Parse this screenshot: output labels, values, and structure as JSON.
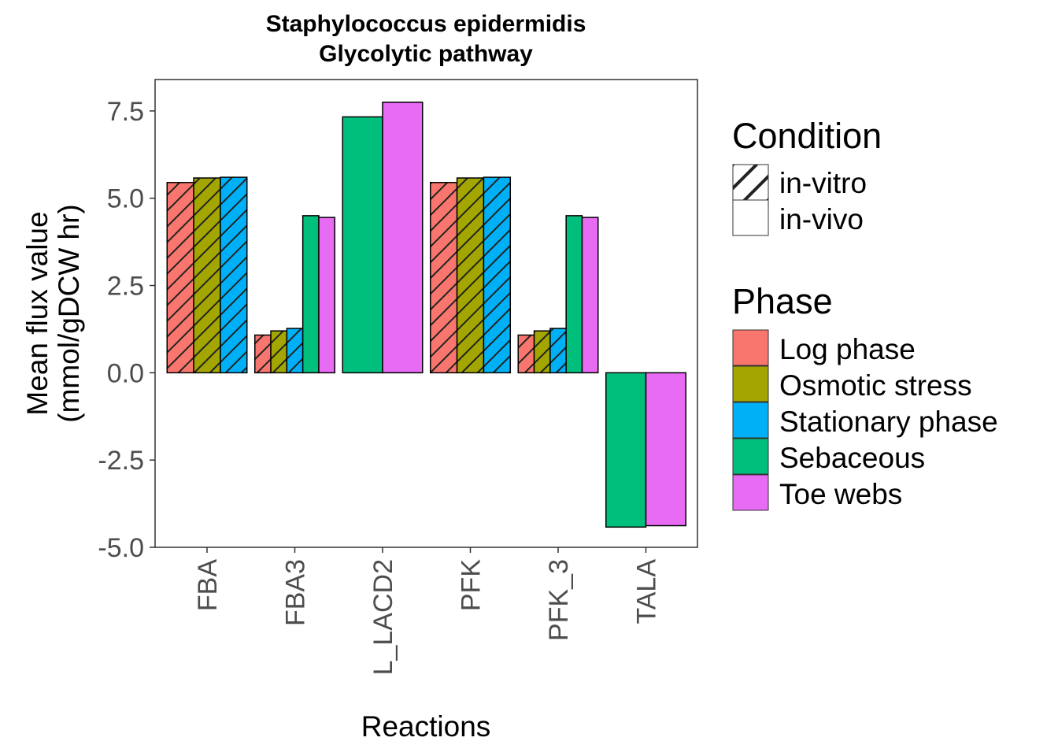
{
  "chart_data": {
    "type": "bar",
    "title": "Staphylococcus epidermidis",
    "subtitle": "Glycolytic pathway",
    "xlabel": "Reactions",
    "ylabel": [
      "Mean flux value",
      "(mmol/gDCW hr)"
    ],
    "categories": [
      "FBA",
      "FBA3",
      "L_LACD2",
      "PFK",
      "PFK_3",
      "TALA"
    ],
    "ylim": [
      -5.0,
      8.4
    ],
    "yticks": [
      "-5.0",
      "-2.5",
      "0.0",
      "2.5",
      "5.0",
      "7.5"
    ],
    "grid": false,
    "legend_position": "right",
    "series": [
      {
        "name": "Log phase",
        "condition": "in-vitro",
        "color": "#F8766D",
        "values": [
          5.45,
          1.08,
          null,
          5.45,
          1.08,
          null
        ]
      },
      {
        "name": "Osmotic stress",
        "condition": "in-vitro",
        "color": "#A3A500",
        "values": [
          5.58,
          1.2,
          null,
          5.58,
          1.2,
          null
        ]
      },
      {
        "name": "Stationary phase",
        "condition": "in-vitro",
        "color": "#00B0F6",
        "values": [
          5.6,
          1.27,
          null,
          5.6,
          1.27,
          null
        ]
      },
      {
        "name": "Sebaceous",
        "condition": "in-vivo",
        "color": "#00BF7D",
        "values": [
          null,
          4.5,
          7.33,
          null,
          4.5,
          -4.42
        ]
      },
      {
        "name": "Toe webs",
        "condition": "in-vivo",
        "color": "#E76BF3",
        "values": [
          null,
          4.45,
          7.75,
          null,
          4.45,
          -4.38
        ]
      }
    ]
  },
  "legend": {
    "condition_title": "Condition",
    "conditions": [
      {
        "label": "in-vitro",
        "pattern": "stripe"
      },
      {
        "label": "in-vivo",
        "pattern": "none"
      }
    ],
    "phase_title": "Phase",
    "phases": [
      {
        "label": "Log phase",
        "color": "#F8766D"
      },
      {
        "label": "Osmotic stress",
        "color": "#A3A500"
      },
      {
        "label": "Stationary phase",
        "color": "#00B0F6"
      },
      {
        "label": "Sebaceous",
        "color": "#00BF7D"
      },
      {
        "label": "Toe webs",
        "color": "#E76BF3"
      }
    ]
  }
}
